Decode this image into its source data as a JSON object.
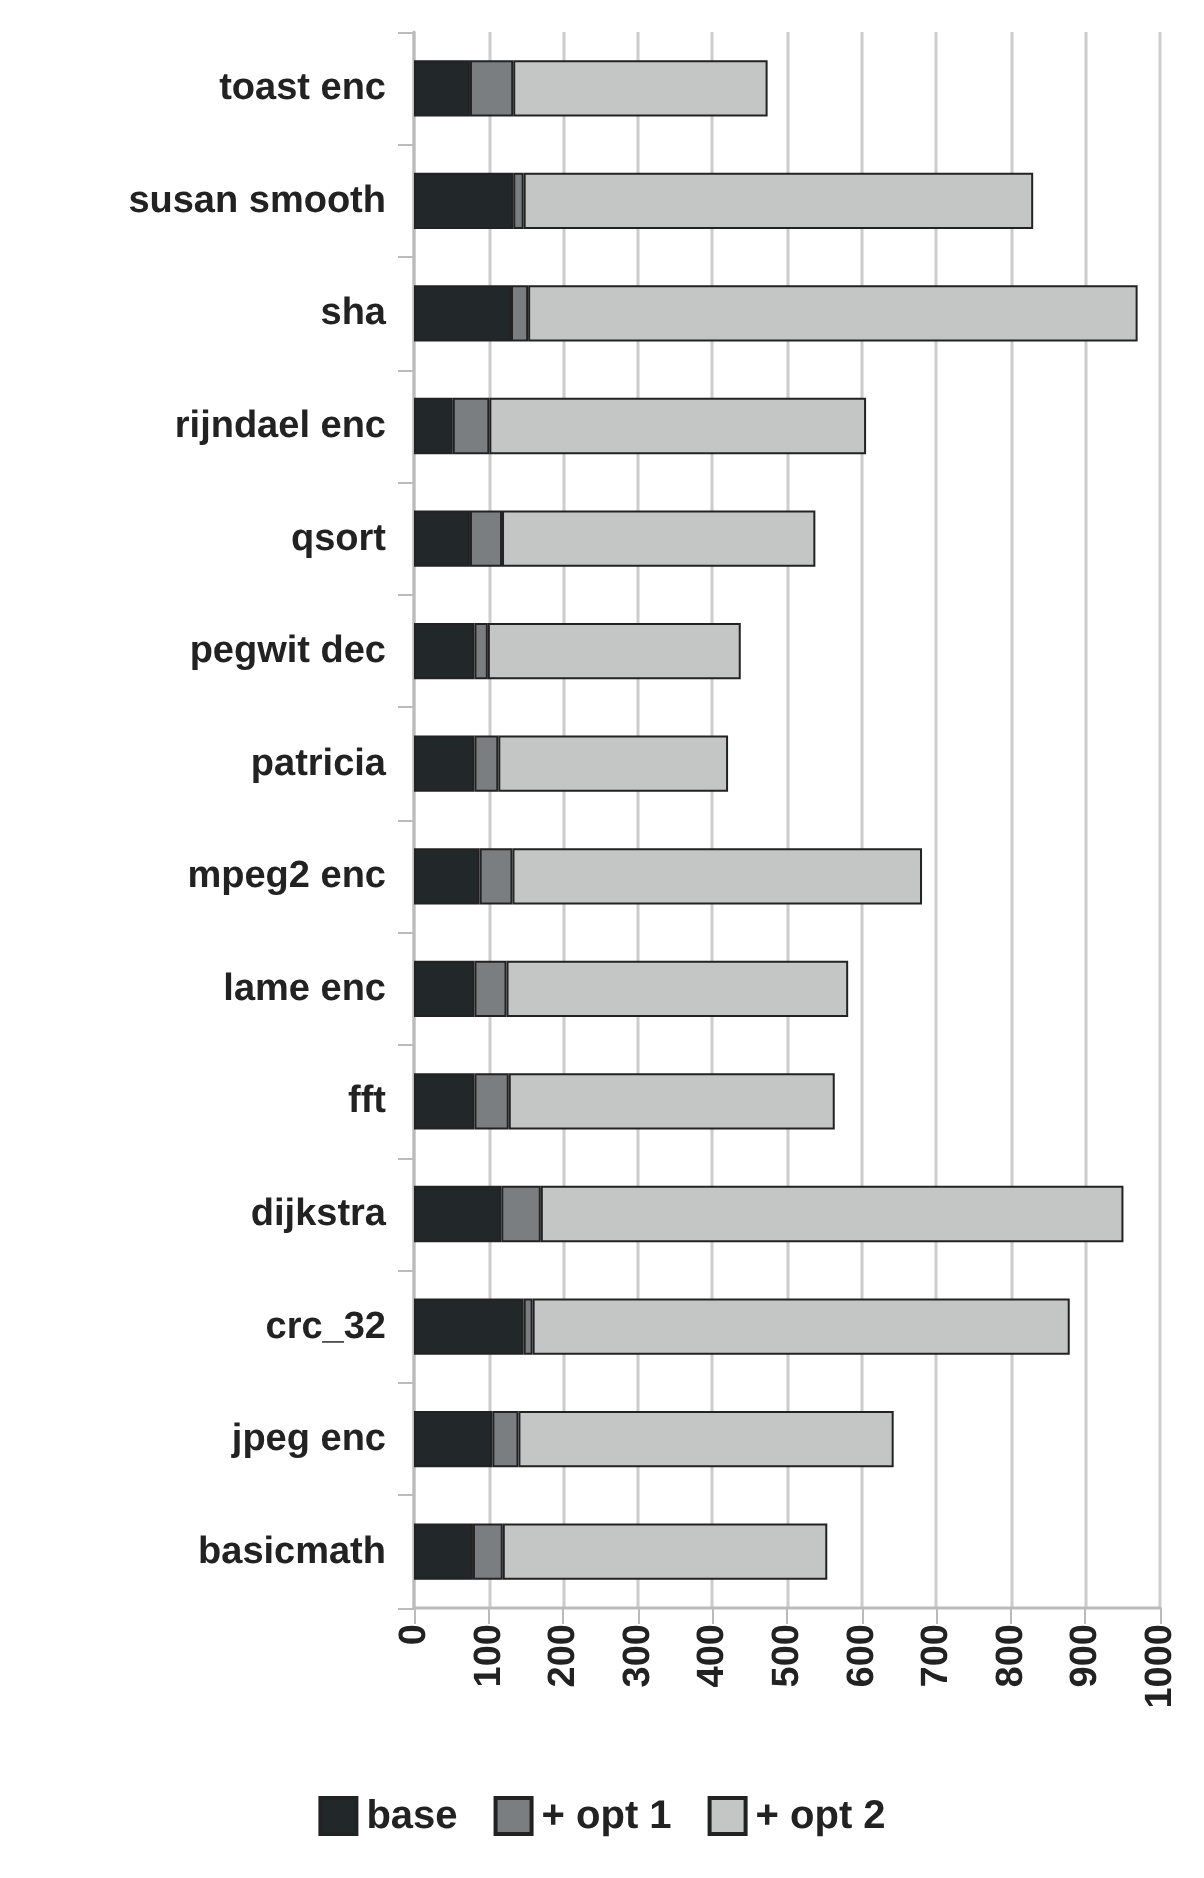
{
  "chart_data": {
    "type": "bar",
    "orientation": "horizontal",
    "stacked": true,
    "categories": [
      "toast enc",
      "susan smooth",
      "sha",
      "rijndael enc",
      "qsort",
      "pegwit dec",
      "patricia",
      "mpeg2 enc",
      "lame enc",
      "fft",
      "dijkstra",
      "crc_32",
      "jpeg enc",
      "basicmath"
    ],
    "series": [
      {
        "name": "base",
        "color": "#22272a",
        "values": [
          75,
          133,
          130,
          52,
          75,
          81,
          81,
          88,
          81,
          81,
          117,
          147,
          105,
          79
        ]
      },
      {
        "name": "+ opt 1",
        "color": "#7a7e80",
        "values": [
          58,
          14,
          23,
          49,
          43,
          18,
          32,
          44,
          43,
          46,
          53,
          12,
          35,
          40
        ]
      },
      {
        "name": "+ opt 2",
        "color": "#c4c6c5",
        "values": [
          341,
          683,
          817,
          505,
          420,
          339,
          308,
          549,
          458,
          437,
          781,
          720,
          503,
          435
        ]
      }
    ],
    "xlim": [
      0,
      1000
    ],
    "xticks": [
      0,
      100,
      200,
      300,
      400,
      500,
      600,
      700,
      800,
      900,
      1000
    ],
    "grid": "x",
    "legend": "bottom"
  }
}
